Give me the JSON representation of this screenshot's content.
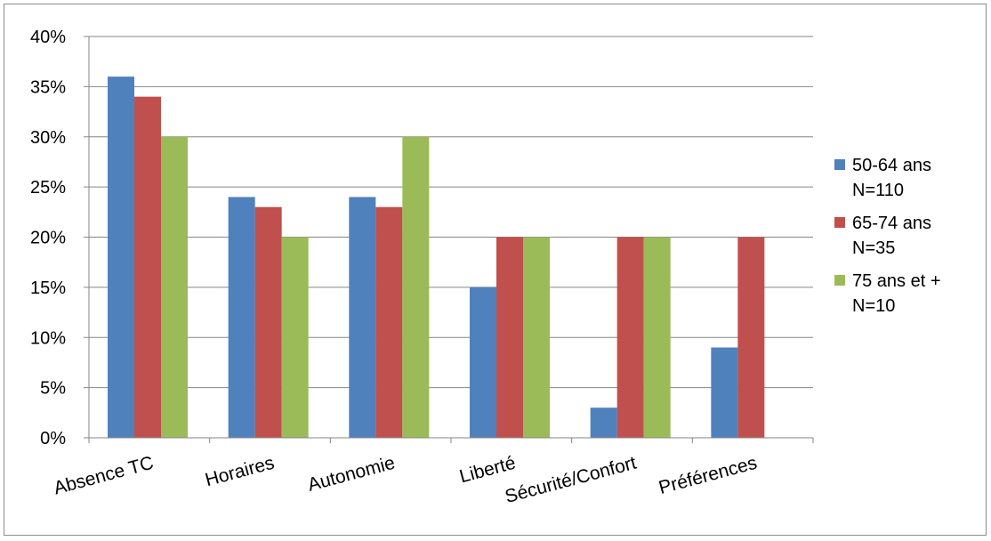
{
  "chart_data": {
    "type": "bar",
    "categories": [
      "Absence TC",
      "Horaires",
      "Autonomie",
      "Liberté",
      "Sécurité/Confort",
      "Préférences"
    ],
    "series": [
      {
        "name": "50-64 ans N=110",
        "name_lines": [
          "50-64 ans",
          "N=110"
        ],
        "color": "#4f81bd",
        "values": [
          36,
          24,
          24,
          15,
          3,
          9
        ]
      },
      {
        "name": "65-74 ans N=35",
        "name_lines": [
          "65-74 ans",
          "N=35"
        ],
        "color": "#c0504d",
        "values": [
          34,
          23,
          23,
          20,
          20,
          20
        ]
      },
      {
        "name": "75 ans et + N=10",
        "name_lines": [
          "75 ans et +",
          "N=10"
        ],
        "color": "#9bbb59",
        "values": [
          30,
          20,
          30,
          20,
          20,
          null
        ]
      }
    ],
    "ylim": [
      0,
      40
    ],
    "yticks": [
      0,
      5,
      10,
      15,
      20,
      25,
      30,
      35,
      40
    ],
    "ytick_labels": [
      "0%",
      "5%",
      "10%",
      "15%",
      "20%",
      "25%",
      "30%",
      "35%",
      "40%"
    ],
    "title": "",
    "xlabel": "",
    "ylabel": "",
    "grid": true,
    "legend_position": "right"
  }
}
